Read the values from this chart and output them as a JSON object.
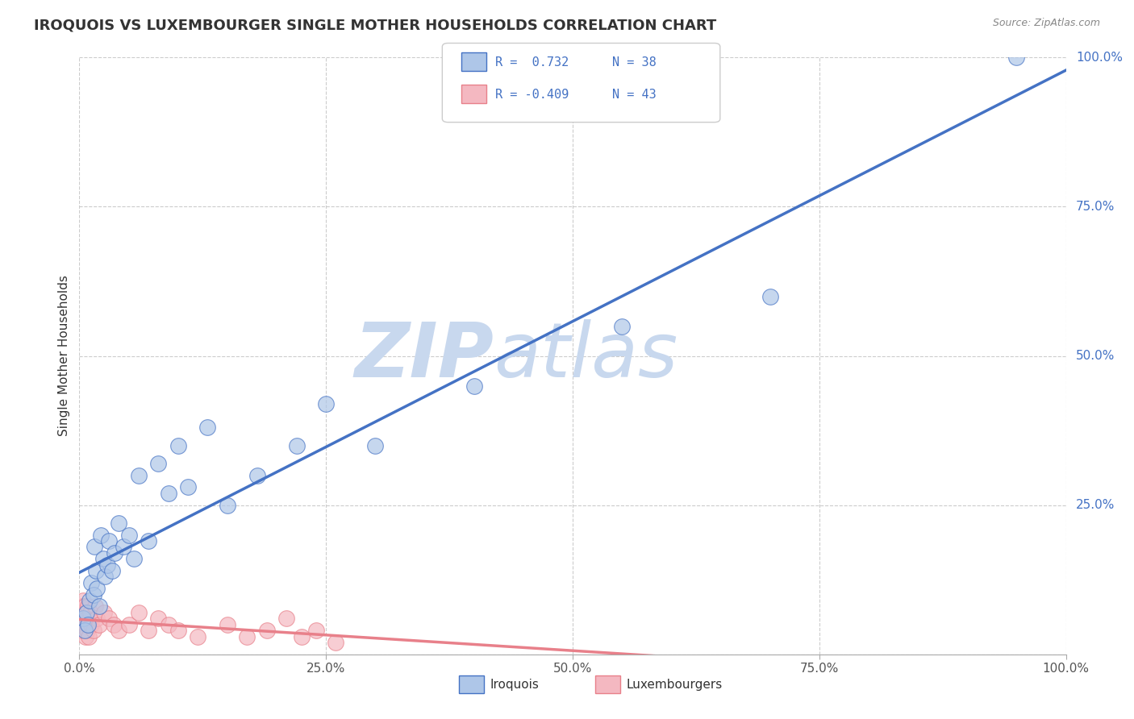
{
  "title": "IROQUOIS VS LUXEMBOURGER SINGLE MOTHER HOUSEHOLDS CORRELATION CHART",
  "source": "Source: ZipAtlas.com",
  "ylabel": "Single Mother Households",
  "xlim": [
    0,
    100
  ],
  "ylim": [
    0,
    100
  ],
  "legend_entries": [
    {
      "label": "Iroquois",
      "R": 0.732,
      "N": 38,
      "color": "#aec6e8",
      "line_color": "#4472c4"
    },
    {
      "label": "Luxembourgers",
      "R": -0.409,
      "N": 43,
      "color": "#f4b8c1",
      "line_color": "#e8808a"
    }
  ],
  "watermark_zip": "ZIP",
  "watermark_atlas": "atlas",
  "watermark_color_zip": "#c8d8ee",
  "watermark_color_atlas": "#c8d8ee",
  "background_color": "#ffffff",
  "grid_color": "#cccccc",
  "title_color": "#333333",
  "right_tick_color": "#4472c4",
  "iroquois_scatter": {
    "x": [
      0.4,
      0.5,
      0.7,
      0.9,
      1.0,
      1.2,
      1.4,
      1.5,
      1.7,
      1.8,
      2.0,
      2.2,
      2.4,
      2.6,
      2.8,
      3.0,
      3.3,
      3.6,
      4.0,
      4.5,
      5.0,
      5.5,
      6.0,
      7.0,
      8.0,
      9.0,
      10.0,
      11.0,
      13.0,
      15.0,
      18.0,
      22.0,
      25.0,
      30.0,
      40.0,
      55.0,
      70.0,
      95.0
    ],
    "y": [
      6,
      4,
      7,
      5,
      9,
      12,
      10,
      18,
      14,
      11,
      8,
      20,
      16,
      13,
      15,
      19,
      14,
      17,
      22,
      18,
      20,
      16,
      30,
      19,
      32,
      27,
      35,
      28,
      38,
      25,
      30,
      35,
      42,
      35,
      45,
      55,
      60,
      100
    ]
  },
  "luxembourger_scatter": {
    "x": [
      0.1,
      0.15,
      0.2,
      0.25,
      0.3,
      0.35,
      0.4,
      0.45,
      0.5,
      0.55,
      0.6,
      0.65,
      0.7,
      0.75,
      0.8,
      0.85,
      0.9,
      0.95,
      1.0,
      1.1,
      1.2,
      1.4,
      1.6,
      1.8,
      2.0,
      2.5,
      3.0,
      3.5,
      4.0,
      5.0,
      6.0,
      7.0,
      8.0,
      9.0,
      10.0,
      12.0,
      15.0,
      17.0,
      19.0,
      21.0,
      22.5,
      24.0,
      26.0
    ],
    "y": [
      5,
      6,
      8,
      4,
      7,
      5,
      9,
      4,
      6,
      8,
      5,
      3,
      7,
      6,
      4,
      8,
      5,
      3,
      6,
      7,
      5,
      4,
      8,
      6,
      5,
      7,
      6,
      5,
      4,
      5,
      7,
      4,
      6,
      5,
      4,
      3,
      5,
      3,
      4,
      6,
      3,
      4,
      2
    ]
  }
}
